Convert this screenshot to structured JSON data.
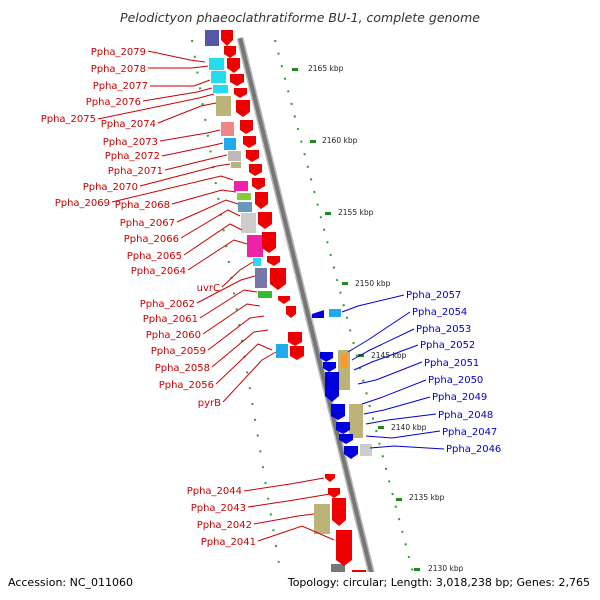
{
  "title": "Pelodictyon phaeoclathratiforme BU-1, complete genome",
  "footer": {
    "accession": "Accession: NC_011060",
    "summary": "Topology: circular; Length: 3,018,238 bp; Genes: 2,765"
  },
  "ticks": [
    "2165 kbp",
    "2160 kbp",
    "2155 kbp",
    "2150 kbp",
    "2145 kbp",
    "2140 kbp",
    "2135 kbp",
    "2130 kbp"
  ],
  "left_labels": [
    "Ppha_2079",
    "Ppha_2078",
    "Ppha_2077",
    "Ppha_2076",
    "Ppha_2075",
    "Ppha_2074",
    "Ppha_2073",
    "Ppha_2072",
    "Ppha_2071",
    "Ppha_2070",
    "Ppha_2069",
    "Ppha_2068",
    "Ppha_2067",
    "Ppha_2066",
    "Ppha_2065",
    "Ppha_2064",
    "uvrC",
    "Ppha_2062",
    "Ppha_2061",
    "Ppha_2060",
    "Ppha_2059",
    "Ppha_2058",
    "Ppha_2056",
    "pyrB"
  ],
  "right_labels": [
    "Ppha_2057",
    "Ppha_2054",
    "Ppha_2053",
    "Ppha_2052",
    "Ppha_2051",
    "Ppha_2050",
    "Ppha_2049",
    "Ppha_2048",
    "Ppha_2047",
    "Ppha_2046"
  ],
  "bottom_labels": [
    "Ppha_2044",
    "Ppha_2043",
    "Ppha_2042",
    "Ppha_2041"
  ],
  "colors": {
    "forward_strand": "#ee0000",
    "reverse_strand": "#0000dd",
    "backbone": "#888888",
    "tick": "#339933",
    "left_label": "#cc0000",
    "right_label": "#0000cc"
  }
}
